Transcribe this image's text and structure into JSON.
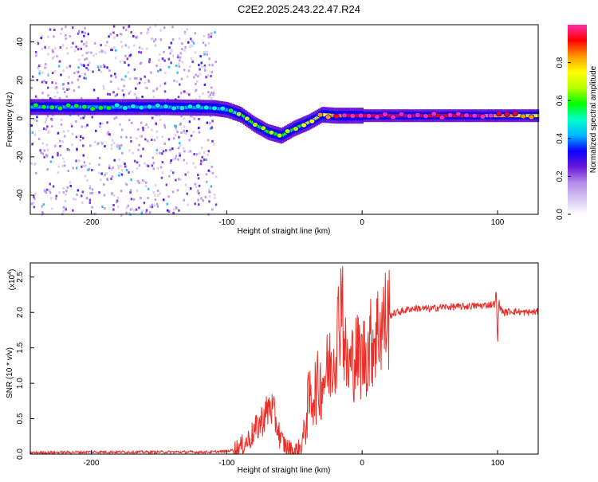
{
  "title": "C2E2.2025.243.22.47.R24",
  "colors": {
    "snr_line": "#e8302a",
    "axis": "#000000",
    "background": "#ffffff",
    "colormap": [
      "#ffffff",
      "#d6c6f2",
      "#b48ae8",
      "#6a18d8",
      "#0a00ff",
      "#00b8ff",
      "#00ffcc",
      "#00ff00",
      "#b8ff00",
      "#ffff00",
      "#ff9a00",
      "#ff0000",
      "#ff2da8"
    ]
  },
  "chart_data": [
    {
      "type": "heatmap",
      "title": "",
      "xlabel": "Height of straight line (km)",
      "ylabel": "Frequency (Hz)",
      "xlim": [
        -245,
        130
      ],
      "ylim": [
        -50,
        49
      ],
      "xticks": [
        -200,
        -100,
        0,
        100
      ],
      "xtick_labels": [
        "-200",
        "-100",
        "0",
        "100"
      ],
      "yticks": [
        40,
        20,
        0,
        -20,
        -40
      ],
      "ytick_labels": [
        "40",
        "20",
        "0",
        "-20",
        "-40"
      ],
      "colorbar": {
        "label": "Normalized spectral amplitude",
        "range": [
          0,
          1
        ],
        "ticks": [
          0.0,
          0.2,
          0.4,
          0.6,
          0.8
        ],
        "tick_labels": [
          "0.0",
          "0.2",
          "0.4",
          "0.6",
          "0.8"
        ]
      },
      "ridge": {
        "x": [
          -245,
          -200,
          -150,
          -110,
          -100,
          -90,
          -80,
          -70,
          -60,
          -50,
          -40,
          -30,
          -20,
          -10,
          0,
          50,
          100,
          130
        ],
        "frequency": [
          6,
          6,
          6,
          5.5,
          4.5,
          2,
          -3,
          -7,
          -9,
          -5,
          -2,
          2,
          1.5,
          1.5,
          1.5,
          1.5,
          1.5,
          1.5
        ],
        "amplitude": [
          0.45,
          0.45,
          0.42,
          0.4,
          0.45,
          0.55,
          0.55,
          0.6,
          0.6,
          0.6,
          0.65,
          0.7,
          0.85,
          0.9,
          0.9,
          0.95,
          0.85,
          0.7
        ]
      },
      "noise_region": {
        "x_range": [
          -245,
          -108
        ],
        "frequency_range": [
          -50,
          49
        ],
        "amplitude_range": [
          0.05,
          0.25
        ]
      }
    },
    {
      "type": "line",
      "title": "",
      "xlabel": "Height of straight line (km)",
      "ylabel": "SNR (10 * v/v)",
      "scale_label": "(x10",
      "scale_exponent": "4",
      "xlim": [
        -245,
        130
      ],
      "ylim": [
        0,
        2.7
      ],
      "xticks": [
        -200,
        -100,
        0,
        100
      ],
      "xtick_labels": [
        "-200",
        "-100",
        "0",
        "100"
      ],
      "yticks": [
        0.0,
        0.5,
        1.0,
        1.5,
        2.0,
        2.5
      ],
      "ytick_labels": [
        "0.0",
        "0.5",
        "1.0",
        "1.5",
        "2.0",
        "2.5"
      ],
      "series": [
        {
          "name": "SNR",
          "x": [
            -245,
            -200,
            -150,
            -110,
            -100,
            -95,
            -90,
            -85,
            -80,
            -75,
            -70,
            -68,
            -65,
            -62,
            -60,
            -55,
            -50,
            -45,
            -42,
            -40,
            -35,
            -30,
            -28,
            -25,
            -22,
            -20,
            -18,
            -16,
            -15,
            -14,
            -12,
            -10,
            -5,
            0,
            5,
            10,
            15,
            20,
            25,
            30,
            35,
            40,
            50,
            60,
            70,
            80,
            90,
            98,
            99,
            100,
            101,
            102,
            105,
            110,
            120,
            130
          ],
          "values": [
            0.02,
            0.03,
            0.03,
            0.03,
            0.04,
            0.06,
            0.1,
            0.18,
            0.3,
            0.45,
            0.6,
            0.7,
            0.55,
            0.35,
            0.2,
            0.08,
            0.03,
            0.1,
            0.4,
            0.7,
            0.9,
            1.0,
            1.1,
            1.2,
            1.35,
            1.5,
            1.75,
            2.1,
            2.7,
            1.8,
            1.3,
            1.2,
            1.4,
            1.35,
            1.5,
            1.7,
            1.85,
            1.95,
            2.0,
            2.02,
            2.05,
            2.06,
            2.05,
            2.08,
            2.08,
            2.09,
            2.1,
            2.12,
            2.3,
            1.55,
            2.2,
            2.05,
            2.0,
            2.02,
            2.0,
            2.01
          ]
        }
      ]
    }
  ]
}
